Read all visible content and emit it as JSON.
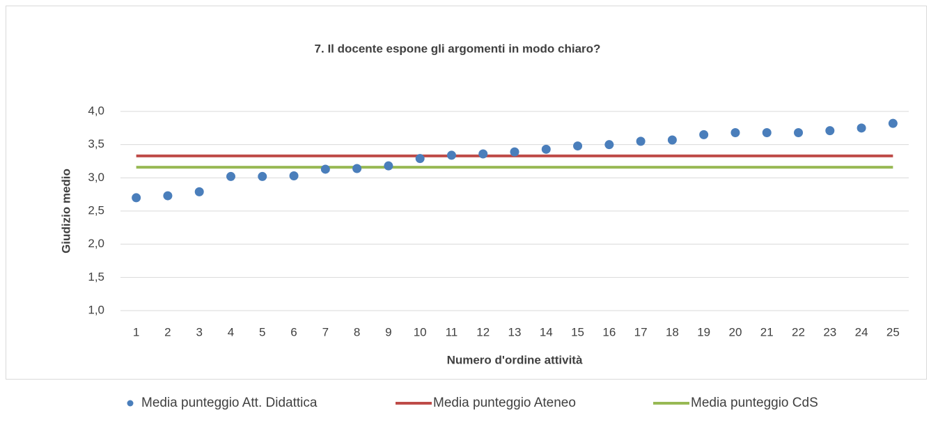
{
  "chart_data": {
    "type": "scatter",
    "title": "7. Il docente espone gli argomenti in modo chiaro?",
    "xlabel": "Numero d'ordine attività",
    "ylabel": "Giudizio medio",
    "categories": [
      "1",
      "2",
      "3",
      "4",
      "5",
      "6",
      "7",
      "8",
      "9",
      "10",
      "11",
      "12",
      "13",
      "14",
      "15",
      "16",
      "17",
      "18",
      "19",
      "20",
      "21",
      "22",
      "23",
      "24",
      "25"
    ],
    "series": [
      {
        "name": "Media punteggio Att. Didattica",
        "type": "scatter",
        "color": "#4a7ebb",
        "values": [
          2.7,
          2.73,
          2.79,
          3.02,
          3.02,
          3.03,
          3.13,
          3.14,
          3.18,
          3.29,
          3.34,
          3.36,
          3.39,
          3.43,
          3.48,
          3.5,
          3.55,
          3.57,
          3.65,
          3.68,
          3.68,
          3.68,
          3.71,
          3.75,
          3.82
        ]
      },
      {
        "name": "Media punteggio Ateneo",
        "type": "line",
        "color": "#be4b48",
        "values": [
          3.33,
          3.33,
          3.33,
          3.33,
          3.33,
          3.33,
          3.33,
          3.33,
          3.33,
          3.33,
          3.33,
          3.33,
          3.33,
          3.33,
          3.33,
          3.33,
          3.33,
          3.33,
          3.33,
          3.33,
          3.33,
          3.33,
          3.33,
          3.33,
          3.33
        ]
      },
      {
        "name": "Media punteggio CdS",
        "type": "line",
        "color": "#98b954",
        "values": [
          3.16,
          3.16,
          3.16,
          3.16,
          3.16,
          3.16,
          3.16,
          3.16,
          3.16,
          3.16,
          3.16,
          3.16,
          3.16,
          3.16,
          3.16,
          3.16,
          3.16,
          3.16,
          3.16,
          3.16,
          3.16,
          3.16,
          3.16,
          3.16,
          3.16
        ]
      }
    ],
    "ylim": [
      1.0,
      4.0
    ],
    "yticks": [
      {
        "value": 1.0,
        "label": "1,0"
      },
      {
        "value": 1.5,
        "label": "1,5"
      },
      {
        "value": 2.0,
        "label": "2,0"
      },
      {
        "value": 2.5,
        "label": "2,5"
      },
      {
        "value": 3.0,
        "label": "3,0"
      },
      {
        "value": 3.5,
        "label": "3,5"
      },
      {
        "value": 4.0,
        "label": "4,0"
      }
    ],
    "grid": true,
    "legend": "bottom"
  }
}
